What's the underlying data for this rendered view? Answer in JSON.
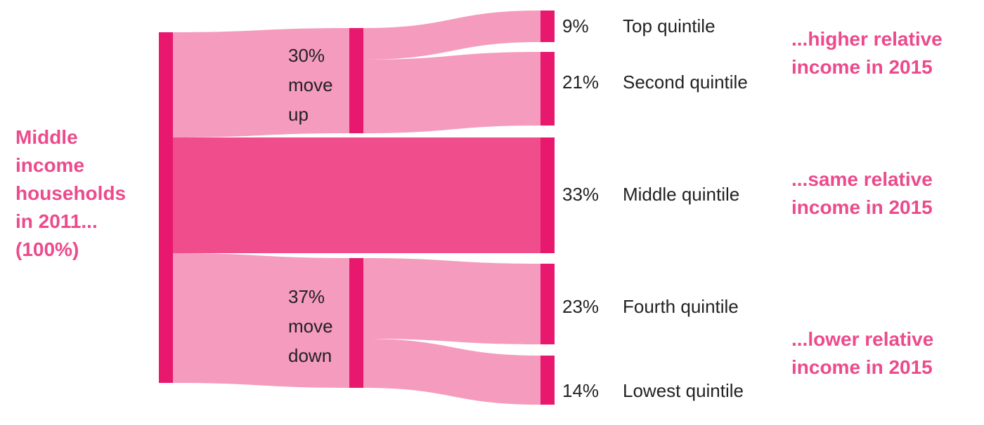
{
  "chart_data": {
    "type": "sankey",
    "node_color": "#e8186e",
    "flow_color": "#f59bbd",
    "main_flow_color": "#ef4d8c",
    "annotation_color": "#ec4a8c",
    "nodes": [
      {
        "name": "Middle income households in 2011...",
        "value": 100,
        "value_label": "(100%)"
      },
      {
        "name": "move up",
        "value": 30,
        "value_label": "30%"
      },
      {
        "name": "move down",
        "value": 37,
        "value_label": "37%"
      },
      {
        "name": "Top quintile",
        "value": 9,
        "value_label": "9%"
      },
      {
        "name": "Second quintile",
        "value": 21,
        "value_label": "21%"
      },
      {
        "name": "Middle quintile",
        "value": 33,
        "value_label": "33%"
      },
      {
        "name": "Fourth quintile",
        "value": 23,
        "value_label": "23%"
      },
      {
        "name": "Lowest quintile",
        "value": 14,
        "value_label": "14%"
      }
    ],
    "links": [
      {
        "source": 0,
        "target": 1
      },
      {
        "source": 0,
        "target": 5
      },
      {
        "source": 0,
        "target": 2
      },
      {
        "source": 1,
        "target": 3
      },
      {
        "source": 1,
        "target": 4
      },
      {
        "source": 2,
        "target": 6
      },
      {
        "source": 2,
        "target": 7
      }
    ],
    "annotations": [
      "...higher relative income in 2015",
      "...same relative income in 2015",
      "...lower relative income in 2015"
    ]
  }
}
